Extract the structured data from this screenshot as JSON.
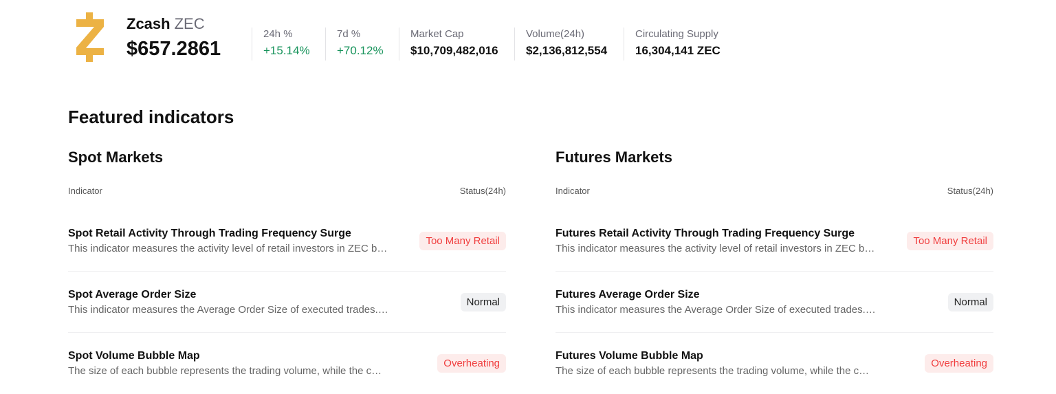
{
  "coin": {
    "name": "Zcash",
    "symbol": "ZEC",
    "price": "$657.2861",
    "logo_color": "#ECB244"
  },
  "stats": [
    {
      "label": "24h %",
      "value": "+15.14%",
      "trend": "up"
    },
    {
      "label": "7d %",
      "value": "+70.12%",
      "trend": "up"
    },
    {
      "label": "Market Cap",
      "value": "$10,709,482,016"
    },
    {
      "label": "Volume(24h)",
      "value": "$2,136,812,554"
    },
    {
      "label": "Circulating Supply",
      "value": "16,304,141 ZEC"
    }
  ],
  "section_title": "Featured indicators",
  "columns": [
    {
      "title": "Spot Markets",
      "header_indicator": "Indicator",
      "header_status": "Status(24h)",
      "rows": [
        {
          "title": "Spot Retail Activity Through Trading Frequency Surge",
          "desc": "This indicator measures the activity level of retail investors in ZEC b…",
          "status": "Too Many Retail",
          "tone": "hot"
        },
        {
          "title": "Spot Average Order Size",
          "desc": "This indicator measures the Average Order Size of executed trades.…",
          "status": "Normal",
          "tone": "norm"
        },
        {
          "title": "Spot Volume Bubble Map",
          "desc": "The size of each bubble represents the trading volume, while the c…",
          "status": "Overheating",
          "tone": "hot"
        }
      ]
    },
    {
      "title": "Futures Markets",
      "header_indicator": "Indicator",
      "header_status": "Status(24h)",
      "rows": [
        {
          "title": "Futures Retail Activity Through Trading Frequency Surge",
          "desc": "This indicator measures the activity level of retail investors in ZEC b…",
          "status": "Too Many Retail",
          "tone": "hot"
        },
        {
          "title": "Futures Average Order Size",
          "desc": "This indicator measures the Average Order Size of executed trades.…",
          "status": "Normal",
          "tone": "norm"
        },
        {
          "title": "Futures Volume Bubble Map",
          "desc": "The size of each bubble represents the trading volume, while the c…",
          "status": "Overheating",
          "tone": "hot"
        }
      ]
    }
  ],
  "colors": {
    "up": "#17935b",
    "hot_text": "#f03e3e",
    "hot_bg": "#fdeceb",
    "normal_bg": "#f0f1f3"
  }
}
